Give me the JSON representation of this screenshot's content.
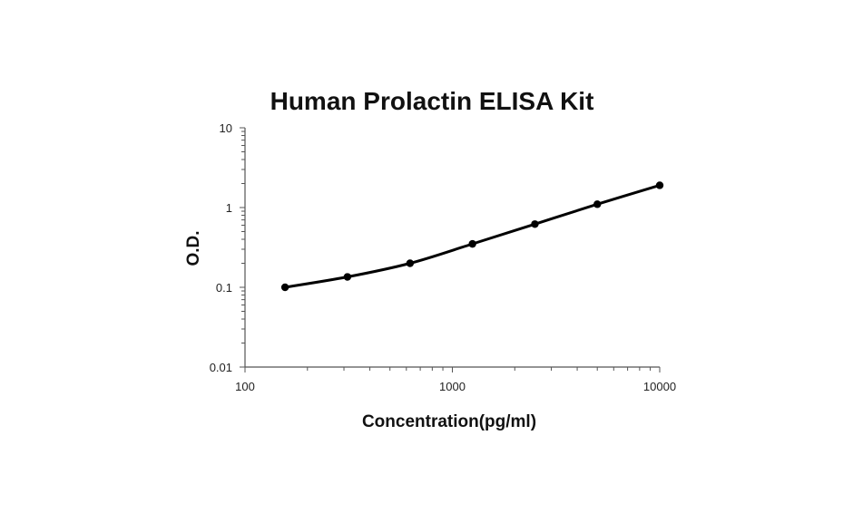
{
  "chart_data": {
    "type": "line",
    "title": "Human Prolactin ELISA Kit",
    "xlabel": "Concentration(pg/ml)",
    "ylabel": "O.D.",
    "x_scale": "log",
    "y_scale": "log",
    "xlim": [
      100,
      10000
    ],
    "ylim": [
      0.01,
      10
    ],
    "x_ticks": [
      {
        "value": 100,
        "label": "100"
      },
      {
        "value": 1000,
        "label": "1000"
      },
      {
        "value": 10000,
        "label": "10000"
      }
    ],
    "y_ticks": [
      {
        "value": 0.01,
        "label": "0.01"
      },
      {
        "value": 0.1,
        "label": "0.1"
      },
      {
        "value": 1,
        "label": "1"
      },
      {
        "value": 10,
        "label": "10"
      }
    ],
    "grid": false,
    "legend": "none",
    "series": [
      {
        "color": "#000000",
        "points": [
          {
            "x": 156,
            "y": 0.1
          },
          {
            "x": 312,
            "y": 0.135
          },
          {
            "x": 625,
            "y": 0.2
          },
          {
            "x": 1250,
            "y": 0.35
          },
          {
            "x": 2500,
            "y": 0.62
          },
          {
            "x": 5000,
            "y": 1.1
          },
          {
            "x": 10000,
            "y": 1.9
          }
        ]
      }
    ]
  }
}
